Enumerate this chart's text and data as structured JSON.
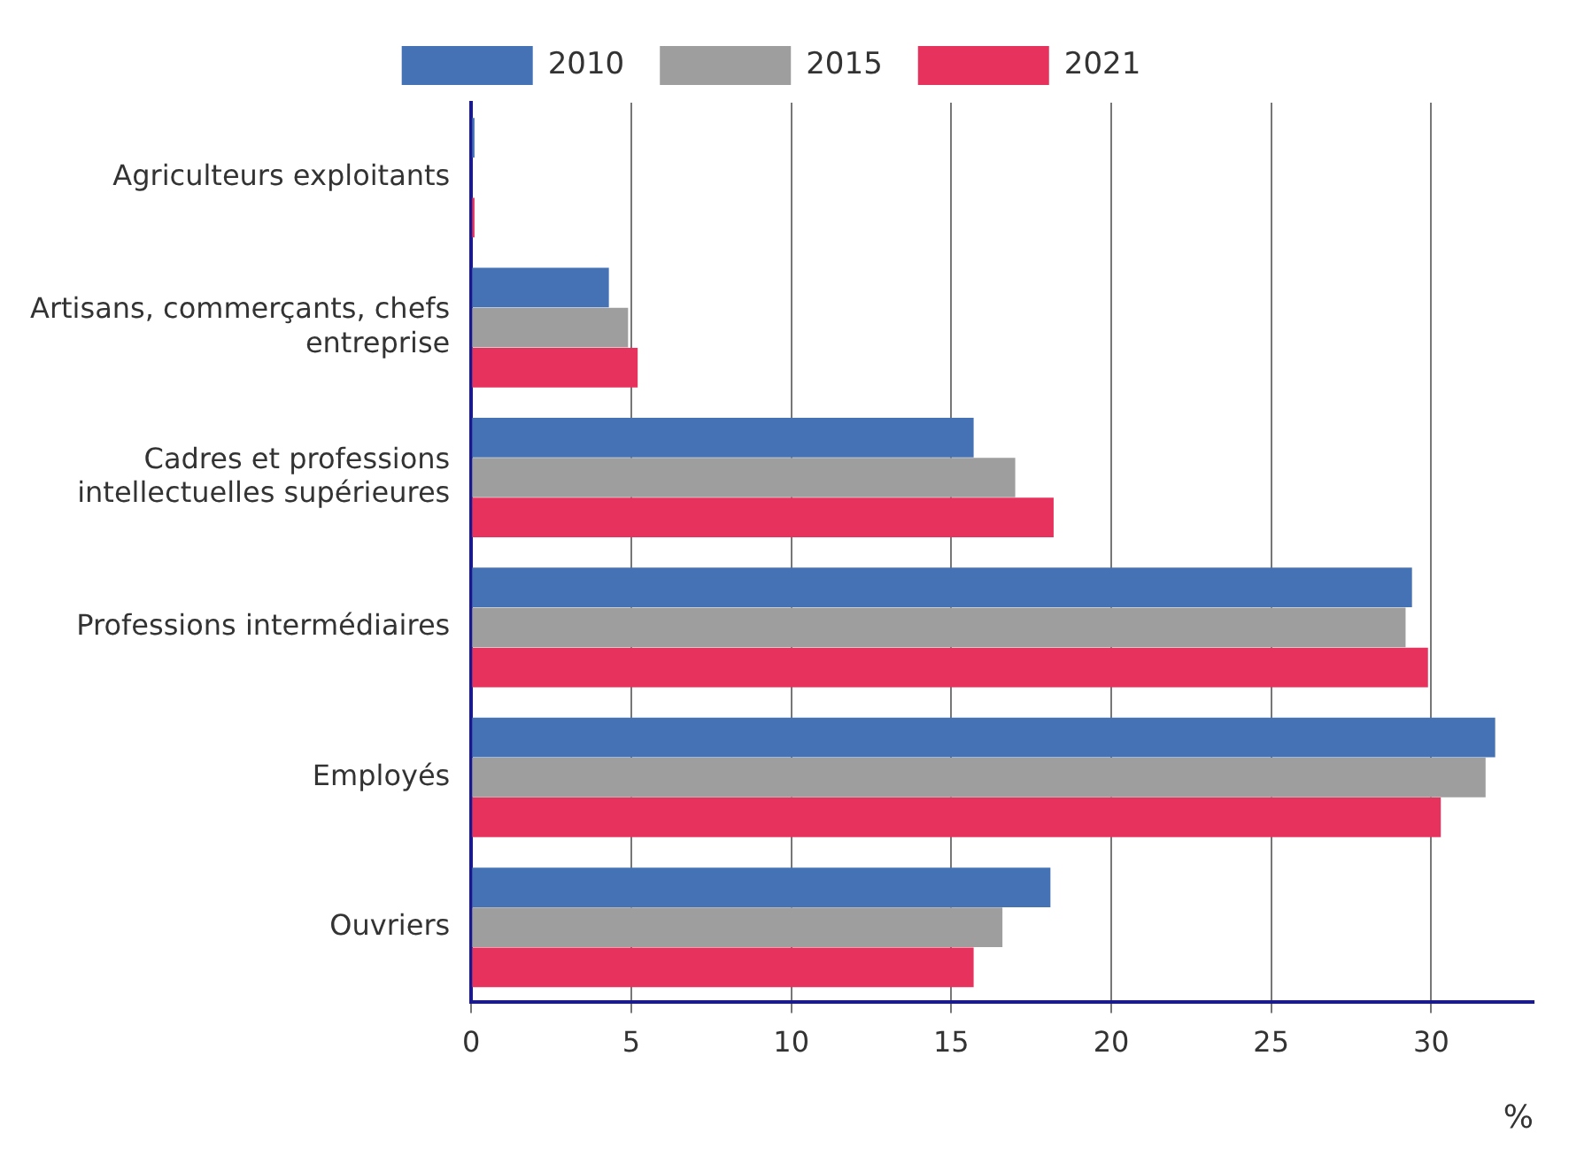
{
  "chart_data": {
    "type": "bar",
    "orientation": "horizontal",
    "xlabel": "%",
    "categories": [
      "Agriculteurs exploitants",
      "Artisans, commerçants, chefs entreprise",
      "Cadres et professions intellectuelles supérieures",
      "Professions intermédiaires",
      "Employés",
      "Ouvriers"
    ],
    "series": [
      {
        "name": "2010",
        "color": "#4472b4",
        "values": [
          0.1,
          4.3,
          15.7,
          29.4,
          32.0,
          18.1
        ]
      },
      {
        "name": "2015",
        "color": "#9e9e9e",
        "values": [
          0,
          4.9,
          17.0,
          29.2,
          31.7,
          16.6
        ]
      },
      {
        "name": "2021",
        "color": "#e8325e",
        "values": [
          0.1,
          5.2,
          18.2,
          29.9,
          30.3,
          15.7
        ]
      }
    ],
    "xlim": [
      0,
      33.2
    ],
    "xticks": [
      0,
      5,
      10,
      15,
      20,
      25,
      30
    ],
    "grid": "x",
    "legend": "top"
  }
}
